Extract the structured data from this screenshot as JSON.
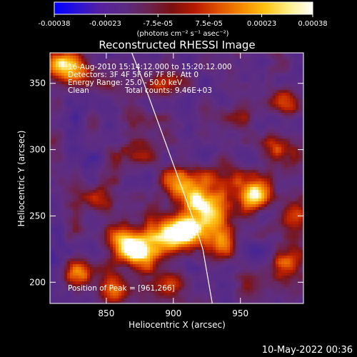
{
  "chart_data": {
    "type": "heatmap",
    "title": "Reconstructed RHESSI Image",
    "xlabel": "Heliocentric X (arcsec)",
    "ylabel": "Heliocentric Y (arcsec)",
    "xlim": [
      808,
      997
    ],
    "ylim": [
      184,
      373
    ],
    "x_ticks": [
      850,
      900,
      950
    ],
    "y_ticks": [
      200,
      250,
      300,
      350
    ],
    "colorbar": {
      "range": [
        -0.00038,
        0.00038
      ],
      "tick_values": [
        -0.00038,
        -0.00023,
        -7.5e-05,
        7.5e-05,
        0.00023,
        0.00038
      ],
      "tick_labels": [
        "-0.00038",
        "-0.00023",
        "-7.5e-05",
        "7.5e-05",
        "0.00023",
        "0.00038"
      ],
      "unit_label": "(photons cm⁻² s⁻¹ asec⁻²)",
      "colors": [
        "#0000ff",
        "#2a12d6",
        "#56219e",
        "#5b2a82",
        "#6a2450",
        "#7a1010",
        "#b81a00",
        "#e05200",
        "#f58a00",
        "#ffc414",
        "#fff08a",
        "#ffffff"
      ]
    },
    "annotations": {
      "time_range": "16-Aug-2010 15:14:12.000 to 15:20:12.000",
      "detectors": "Detectors: 3F 4F 5F 6F 7F 8F, Att 0",
      "energy": "Energy Range: 25.0 - 50.0 keV",
      "method": "Clean",
      "counts": "Total counts: 9.46E+03",
      "peak": "Position of Peak = [961,266]"
    },
    "limb_curve": {
      "x": [
        869,
        878,
        887,
        896,
        905,
        914,
        922,
        929
      ],
      "y": [
        373,
        350,
        325,
        300,
        275,
        250,
        225,
        184
      ]
    },
    "hot_spots": [
      {
        "x": 910,
        "y": 240,
        "intensity": 1.0
      },
      {
        "x": 920,
        "y": 262,
        "intensity": 0.9
      },
      {
        "x": 895,
        "y": 236,
        "intensity": 0.95
      },
      {
        "x": 875,
        "y": 222,
        "intensity": 0.85
      },
      {
        "x": 862,
        "y": 232,
        "intensity": 0.8
      },
      {
        "x": 930,
        "y": 250,
        "intensity": 0.75
      },
      {
        "x": 935,
        "y": 228,
        "intensity": 0.7
      },
      {
        "x": 905,
        "y": 275,
        "intensity": 0.7
      },
      {
        "x": 940,
        "y": 280,
        "intensity": 0.55
      },
      {
        "x": 961,
        "y": 266,
        "intensity": 1.0
      },
      {
        "x": 975,
        "y": 300,
        "intensity": 0.6
      },
      {
        "x": 985,
        "y": 335,
        "intensity": 0.55
      },
      {
        "x": 815,
        "y": 365,
        "intensity": 0.75
      },
      {
        "x": 828,
        "y": 360,
        "intensity": 0.55
      },
      {
        "x": 830,
        "y": 205,
        "intensity": 0.6
      },
      {
        "x": 855,
        "y": 192,
        "intensity": 0.55
      },
      {
        "x": 900,
        "y": 200,
        "intensity": 0.45
      },
      {
        "x": 985,
        "y": 215,
        "intensity": 0.6
      },
      {
        "x": 990,
        "y": 250,
        "intensity": 0.55
      },
      {
        "x": 870,
        "y": 300,
        "intensity": 0.45
      },
      {
        "x": 950,
        "y": 330,
        "intensity": 0.35
      },
      {
        "x": 845,
        "y": 260,
        "intensity": 0.45
      },
      {
        "x": 960,
        "y": 195,
        "intensity": 0.4
      },
      {
        "x": 890,
        "y": 350,
        "intensity": 0.35
      }
    ]
  },
  "footer": {
    "timestamp": "10-May-2022 00:36"
  }
}
